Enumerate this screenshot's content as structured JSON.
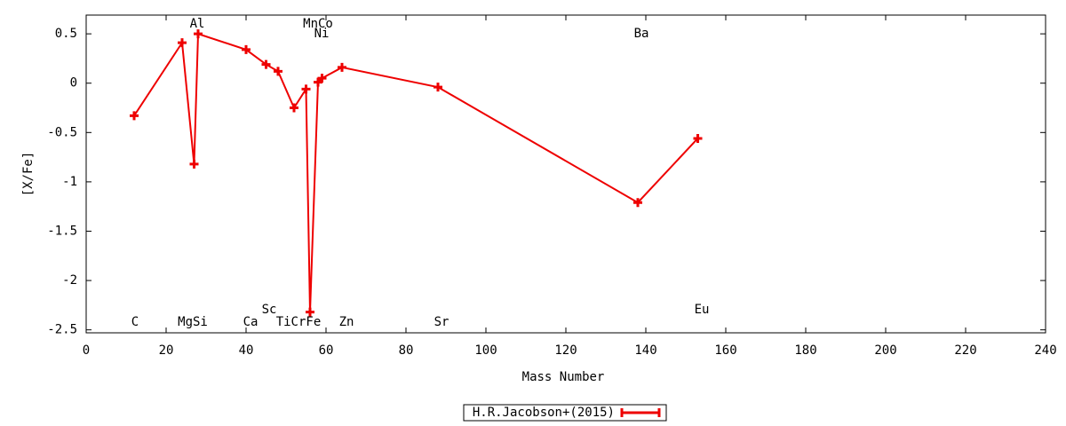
{
  "chart_data": {
    "type": "line",
    "xlabel": "Mass Number",
    "ylabel": "[X/Fe]",
    "x": [
      12,
      24,
      27,
      28,
      40,
      45,
      48,
      52,
      55,
      56,
      58,
      59,
      64,
      88,
      138,
      153
    ],
    "series": [
      {
        "name": "H.R.Jacobson+(2015)",
        "color": "#ee0000",
        "values": [
          -0.33,
          0.41,
          -0.82,
          0.5,
          0.34,
          0.19,
          0.12,
          -0.25,
          -0.06,
          -2.32,
          0.01,
          0.05,
          0.16,
          -0.04,
          -1.21,
          -0.56
        ]
      }
    ],
    "annotations": [
      "C",
      "MgSi",
      "Al",
      "Ca",
      "Sc",
      "TiCrFe",
      "MnCo",
      "Ni",
      "Zn",
      "Sr",
      "Ba",
      "Eu"
    ],
    "xlim": [
      0,
      240
    ],
    "xticks": [
      0,
      20,
      40,
      60,
      80,
      100,
      120,
      140,
      160,
      180,
      200,
      220,
      240
    ],
    "ylim": [
      -2.53,
      0.69
    ],
    "yticks": [
      0.5,
      0,
      -0.5,
      -1,
      -1.5,
      -2,
      -2.5
    ],
    "grid": false
  }
}
